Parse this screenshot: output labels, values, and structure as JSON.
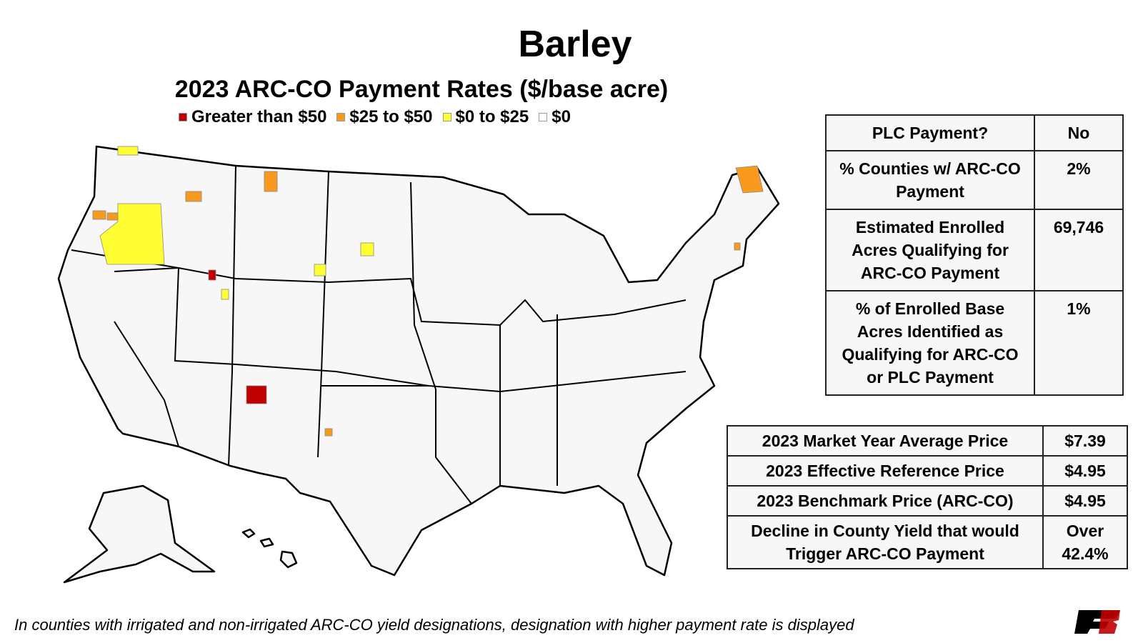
{
  "header": {
    "title": "Barley",
    "subtitle": "2023 ARC-CO Payment Rates ($/base acre)"
  },
  "legend": [
    {
      "label": "Greater than $50",
      "color": "#c00000"
    },
    {
      "label": "$25 to $50",
      "color": "#f79a1e"
    },
    {
      "label": "$0 to $25",
      "color": "#ffff33"
    },
    {
      "label": "$0",
      "color": "#ffffff"
    }
  ],
  "payment_table": {
    "rows": [
      [
        "PLC Payment?",
        "No"
      ],
      [
        "% Counties w/ ARC-CO Payment",
        "2%"
      ],
      [
        "Estimated Enrolled Acres Qualifying for ARC-CO Payment",
        "69,746"
      ],
      [
        "% of Enrolled Base Acres Identified as Qualifying for ARC-CO or PLC Payment",
        "1%"
      ]
    ]
  },
  "price_table": {
    "rows": [
      [
        "2023 Market Year Average Price",
        "$7.39"
      ],
      [
        "2023 Effective Reference Price",
        "$4.95"
      ],
      [
        "2023 Benchmark Price (ARC-CO)",
        "$4.95"
      ],
      [
        "Decline in County Yield that would Trigger ARC-CO Payment",
        "Over 42.4%"
      ]
    ]
  },
  "footnote": "In counties with irrigated and non-irrigated ARC-CO yield designations, designation with higher payment rate is displayed"
}
